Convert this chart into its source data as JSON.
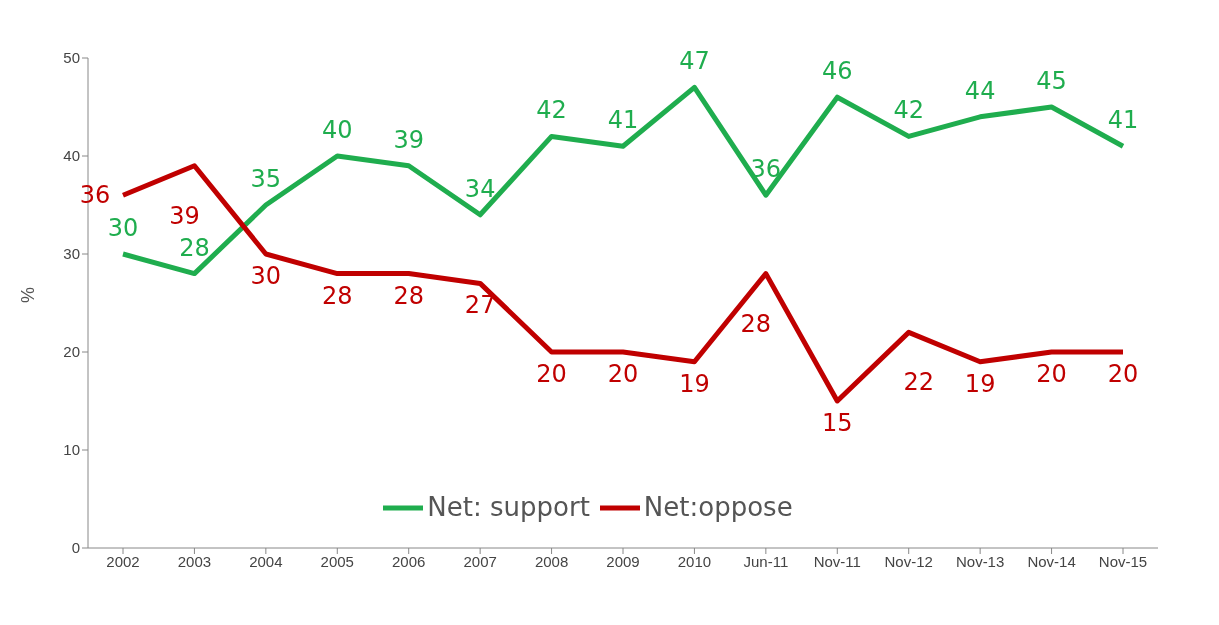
{
  "chart_data": {
    "type": "line",
    "ylabel": "%",
    "categories": [
      "2002",
      "2003",
      "2004",
      "2005",
      "2006",
      "2007",
      "2008",
      "2009",
      "2010",
      "Jun-11",
      "Nov-11",
      "Nov-12",
      "Nov-13",
      "Nov-14",
      "Nov-15"
    ],
    "series": [
      {
        "name": "Net: support",
        "color": "#1fad4e",
        "values": [
          30,
          28,
          35,
          40,
          39,
          34,
          42,
          41,
          47,
          36,
          46,
          42,
          44,
          45,
          41
        ]
      },
      {
        "name": "Net:oppose",
        "color": "#c00000",
        "values": [
          36,
          39,
          30,
          28,
          28,
          27,
          20,
          20,
          19,
          28,
          15,
          22,
          19,
          20,
          20
        ]
      }
    ],
    "ylim": [
      0,
      50
    ],
    "yticks": [
      0,
      10,
      20,
      30,
      40,
      50
    ],
    "grid": false,
    "legend": "bottom",
    "data_labels": true,
    "marker": "none",
    "line_style": "solid"
  }
}
